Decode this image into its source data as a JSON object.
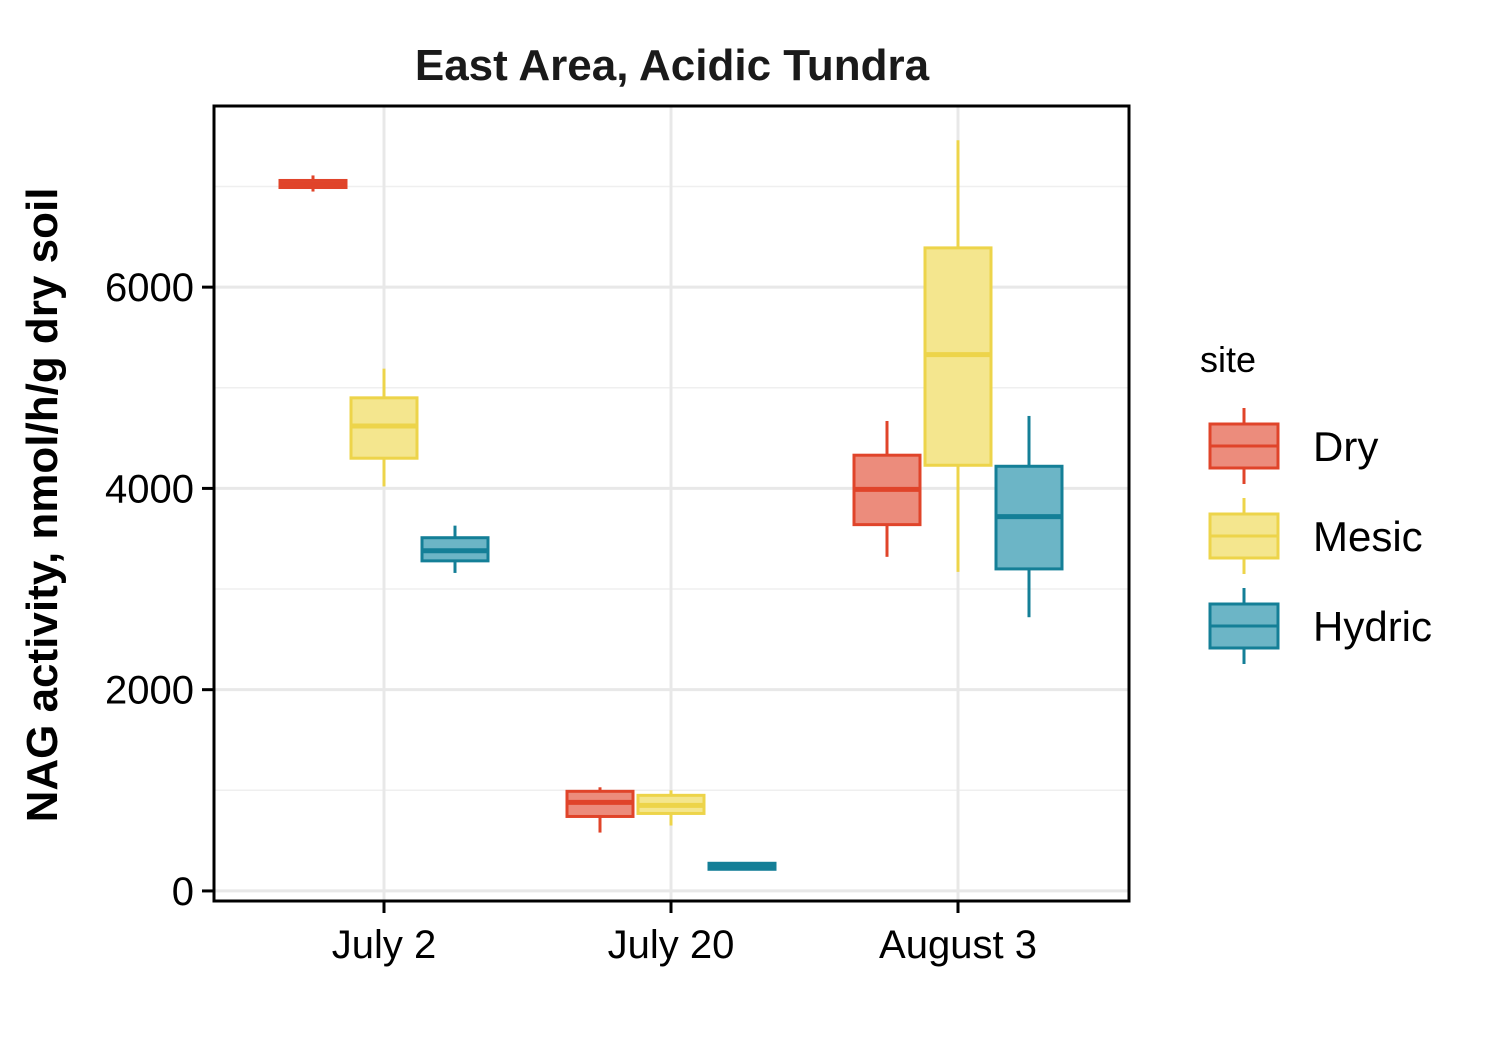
{
  "chart_data": {
    "type": "boxplot",
    "title": "East Area, Acidic Tundra",
    "xlabel": "",
    "ylabel": "NAG activity, nmol/h/g dry soil",
    "categories": [
      "July 2",
      "July 20",
      "August 3"
    ],
    "ylim": [
      -100,
      7800
    ],
    "yticks": [
      0,
      2000,
      4000,
      6000
    ],
    "ytick_labels": [
      "0",
      "2000",
      "4000",
      "6000"
    ],
    "grid": true,
    "legend": {
      "title": "site",
      "position": "right"
    },
    "series": [
      {
        "name": "Dry",
        "color": "#E0442A",
        "fill": "#EC8C7C",
        "boxes": [
          {
            "min": 6950,
            "q1": 6990,
            "median": 7020,
            "q3": 7060,
            "max": 7110
          },
          {
            "min": 580,
            "q1": 740,
            "median": 880,
            "q3": 990,
            "max": 1030
          },
          {
            "min": 3320,
            "q1": 3640,
            "median": 3990,
            "q3": 4330,
            "max": 4670
          }
        ]
      },
      {
        "name": "Mesic",
        "color": "#EDD44A",
        "fill": "#F4E68E",
        "boxes": [
          {
            "min": 4020,
            "q1": 4300,
            "median": 4620,
            "q3": 4900,
            "max": 5190
          },
          {
            "min": 650,
            "q1": 770,
            "median": 850,
            "q3": 950,
            "max": 1000
          },
          {
            "min": 3170,
            "q1": 4230,
            "median": 5330,
            "q3": 6390,
            "max": 7460
          }
        ]
      },
      {
        "name": "Hydric",
        "color": "#147F97",
        "fill": "#6CB5C6",
        "boxes": [
          {
            "min": 3160,
            "q1": 3280,
            "median": 3380,
            "q3": 3510,
            "max": 3630
          },
          {
            "min": 220,
            "q1": 235,
            "median": 245,
            "q3": 255,
            "max": 270
          },
          {
            "min": 2720,
            "q1": 3200,
            "median": 3720,
            "q3": 4220,
            "max": 4720
          }
        ]
      }
    ]
  }
}
